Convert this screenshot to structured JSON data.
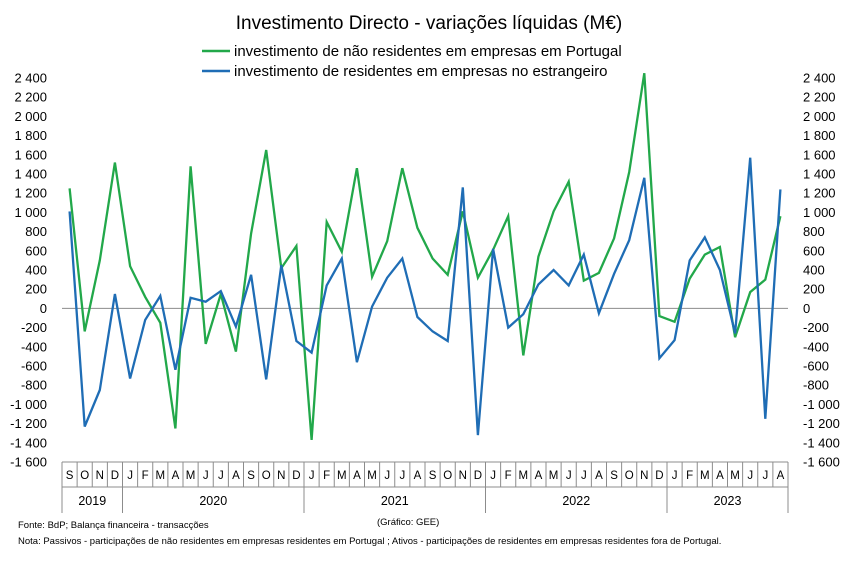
{
  "chart_data": {
    "type": "line",
    "title": "Investimento Directo - variações líquidas (M€)",
    "ylim": [
      -1600,
      2400
    ],
    "y_tick_step": 200,
    "y_tick_labels": [
      "-1 600",
      "-1 400",
      "-1 200",
      "-1 000",
      "-800",
      "-600",
      "-400",
      "-200",
      "0",
      "200",
      "400",
      "600",
      "800",
      "1 000",
      "1 200",
      "1 400",
      "1 600",
      "1 800",
      "2 000",
      "2 200",
      "2 400"
    ],
    "secondary_axis": true,
    "grid": false,
    "legend_position": "top",
    "categories": [
      "S",
      "O",
      "N",
      "D",
      "J",
      "F",
      "M",
      "A",
      "M",
      "J",
      "J",
      "A",
      "S",
      "O",
      "N",
      "D",
      "J",
      "F",
      "M",
      "A",
      "M",
      "J",
      "J",
      "A",
      "S",
      "O",
      "N",
      "D",
      "J",
      "F",
      "M",
      "A",
      "M",
      "J",
      "J",
      "A",
      "S",
      "O",
      "N",
      "D",
      "J",
      "F",
      "M",
      "A",
      "M",
      "J",
      "J",
      "A"
    ],
    "years": [
      {
        "label": "2019",
        "start": 0,
        "count": 4
      },
      {
        "label": "2020",
        "start": 4,
        "count": 12
      },
      {
        "label": "2021",
        "start": 16,
        "count": 12
      },
      {
        "label": "2022",
        "start": 28,
        "count": 12
      },
      {
        "label": "2023",
        "start": 40,
        "count": 8
      }
    ],
    "series": [
      {
        "name": "investimento de não residentes em empresas em Portugal",
        "color": "#22a84a",
        "values": [
          1250,
          -240,
          500,
          1520,
          440,
          120,
          -150,
          -1250,
          1480,
          -370,
          150,
          -450,
          780,
          1650,
          420,
          650,
          -1370,
          900,
          590,
          1460,
          330,
          700,
          1460,
          840,
          520,
          350,
          1010,
          320,
          610,
          960,
          -490,
          540,
          1010,
          1320,
          290,
          370,
          730,
          1420,
          2450,
          -80,
          -140,
          310,
          560,
          640,
          -300,
          170,
          300,
          960
        ]
      },
      {
        "name": "investimento de residentes em empresas no estrangeiro",
        "color": "#1f6db5",
        "values": [
          1010,
          -1230,
          -850,
          150,
          -730,
          -120,
          130,
          -640,
          110,
          70,
          180,
          -190,
          350,
          -740,
          450,
          -340,
          -460,
          240,
          520,
          -560,
          20,
          320,
          520,
          -90,
          -240,
          -340,
          1260,
          -1320,
          620,
          -200,
          -60,
          250,
          400,
          240,
          560,
          -50,
          360,
          710,
          1360,
          -520,
          -330,
          500,
          740,
          400,
          -260,
          1570,
          -1150,
          1240
        ]
      }
    ]
  },
  "footnotes": {
    "source": "Fonte: BdP; Balança financeira - transacções",
    "credit": "(Gráfico: GEE)",
    "note": "Nota: Passivos - participações de não residentes em empresas residentes em Portugal ; Ativos - participações de residentes em empresas residentes fora de Portugal."
  }
}
